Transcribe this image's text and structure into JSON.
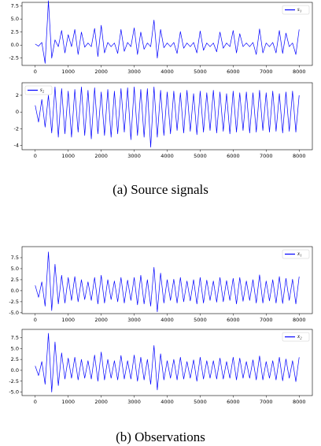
{
  "captions": [
    "(a) Source signals",
    "(b) Observations"
  ],
  "chart_data": [
    {
      "type": "line",
      "legend": "upper right",
      "x": [
        0,
        100,
        200,
        300,
        400,
        500,
        600,
        700,
        800,
        900,
        1000,
        1100,
        1200,
        1300,
        1400,
        1500,
        1600,
        1700,
        1800,
        1900,
        2000,
        2100,
        2200,
        2300,
        2400,
        2500,
        2600,
        2700,
        2800,
        2900,
        3000,
        3100,
        3200,
        3300,
        3400,
        3500,
        3600,
        3700,
        3800,
        3900,
        4000,
        4100,
        4200,
        4300,
        4400,
        4500,
        4600,
        4700,
        4800,
        4900,
        5000,
        5100,
        5200,
        5300,
        5400,
        5500,
        5600,
        5700,
        5800,
        5900,
        6000,
        6100,
        6200,
        6300,
        6400,
        6500,
        6600,
        6700,
        6800,
        6900,
        7000,
        7100,
        7200,
        7300,
        7400,
        7500,
        7600,
        7700,
        7800,
        7900,
        8000
      ],
      "series": [
        {
          "name": "s₁",
          "color": "#0000ff",
          "values": [
            0.2,
            -0.2,
            0.5,
            -3.5,
            8.5,
            -2.5,
            1.0,
            -0.3,
            2.8,
            -1.5,
            2.0,
            -0.3,
            3.0,
            -1.8,
            2.5,
            -0.4,
            0.4,
            -0.3,
            3.2,
            -2.2,
            3.8,
            -1.5,
            0.5,
            -0.3,
            0.4,
            -1.6,
            3.0,
            -1.2,
            0.5,
            -0.3,
            3.3,
            -1.8,
            2.5,
            -0.8,
            0.4,
            -0.3,
            4.8,
            -2.5,
            3.0,
            -0.5,
            0.4,
            -0.3,
            0.5,
            -1.6,
            2.6,
            -0.6,
            0.4,
            -0.3,
            0.5,
            -1.5,
            2.7,
            -1.0,
            0.4,
            -0.3,
            0.4,
            -1.3,
            2.5,
            -0.6,
            0.4,
            -0.3,
            2.8,
            -1.5,
            2.2,
            -0.3,
            0.4,
            -0.3,
            0.5,
            -1.8,
            3.1,
            -1.5,
            0.4,
            -0.3,
            0.5,
            -1.5,
            2.8,
            -1.6,
            2.3,
            -0.3,
            0.4,
            -1.8,
            3.0
          ]
        }
      ],
      "xlim": [
        -400,
        8400
      ],
      "xticks": [
        0,
        1000,
        2000,
        3000,
        4000,
        5000,
        6000,
        7000,
        8000
      ],
      "ylim": [
        -3.9,
        8.2
      ],
      "yticks": [
        7.5,
        {
          "value": 5,
          "label": "5.0"
        },
        2.5,
        {
          "value": 0,
          "label": "0.0"
        },
        -2.5
      ]
    },
    {
      "type": "line",
      "legend": "upper left",
      "x": [
        0,
        100,
        200,
        300,
        400,
        500,
        600,
        700,
        800,
        900,
        1000,
        1100,
        1200,
        1300,
        1400,
        1500,
        1600,
        1700,
        1800,
        1900,
        2000,
        2100,
        2200,
        2300,
        2400,
        2500,
        2600,
        2700,
        2800,
        2900,
        3000,
        3100,
        3200,
        3300,
        3400,
        3500,
        3600,
        3700,
        3800,
        3900,
        4000,
        4100,
        4200,
        4300,
        4400,
        4500,
        4600,
        4700,
        4800,
        4900,
        5000,
        5100,
        5200,
        5300,
        5400,
        5500,
        5600,
        5700,
        5800,
        5900,
        6000,
        6100,
        6200,
        6300,
        6400,
        6500,
        6600,
        6700,
        6800,
        6900,
        7000,
        7100,
        7200,
        7300,
        7400,
        7500,
        7600,
        7700,
        7800,
        7900,
        8000
      ],
      "series": [
        {
          "name": "s₂",
          "color": "#0000ff",
          "values": [
            0.8,
            -1.2,
            1.5,
            -1.8,
            2.0,
            -2.5,
            3.0,
            -3.0,
            2.8,
            -2.6,
            2.5,
            -3.0,
            2.7,
            -2.4,
            3.0,
            -2.8,
            2.6,
            -3.2,
            2.9,
            -2.6,
            2.4,
            -2.8,
            2.7,
            -3.0,
            2.5,
            -2.6,
            2.8,
            -2.4,
            2.9,
            -3.3,
            3.0,
            -2.8,
            2.7,
            -3.0,
            2.8,
            -4.2,
            3.0,
            -3.0,
            2.6,
            -2.8,
            2.4,
            -2.6,
            2.5,
            -2.2,
            2.3,
            -2.5,
            2.6,
            -2.3,
            2.2,
            -2.7,
            2.5,
            -2.4,
            2.3,
            -2.2,
            2.6,
            -2.5,
            2.4,
            -2.3,
            2.2,
            -2.6,
            2.5,
            -2.4,
            2.3,
            -2.2,
            2.4,
            -2.5,
            2.3,
            -2.4,
            2.6,
            -2.2,
            2.3,
            -2.4,
            2.5,
            -2.3,
            2.2,
            -2.5,
            2.4,
            -2.3,
            2.5,
            -2.4,
            2.0
          ]
        }
      ],
      "xlim": [
        -400,
        8400
      ],
      "xticks": [
        0,
        1000,
        2000,
        3000,
        4000,
        5000,
        6000,
        7000,
        8000
      ],
      "ylim": [
        -4.5,
        3.5
      ],
      "yticks": [
        2,
        0,
        -2,
        -4
      ]
    },
    {
      "type": "line",
      "legend": "upper right",
      "x": [
        0,
        100,
        200,
        300,
        400,
        500,
        600,
        700,
        800,
        900,
        1000,
        1100,
        1200,
        1300,
        1400,
        1500,
        1600,
        1700,
        1800,
        1900,
        2000,
        2100,
        2200,
        2300,
        2400,
        2500,
        2600,
        2700,
        2800,
        2900,
        3000,
        3100,
        3200,
        3300,
        3400,
        3500,
        3600,
        3700,
        3800,
        3900,
        4000,
        4100,
        4200,
        4300,
        4400,
        4500,
        4600,
        4700,
        4800,
        4900,
        5000,
        5100,
        5200,
        5300,
        5400,
        5500,
        5600,
        5700,
        5800,
        5900,
        6000,
        6100,
        6200,
        6300,
        6400,
        6500,
        6600,
        6700,
        6800,
        6900,
        7000,
        7100,
        7200,
        7300,
        7400,
        7500,
        7600,
        7700,
        7800,
        7900,
        8000
      ],
      "series": [
        {
          "name": "x₁",
          "color": "#0000ff",
          "values": [
            1.2,
            -1.5,
            2.0,
            -3.5,
            8.8,
            -4.5,
            6.0,
            -3.0,
            3.5,
            -2.8,
            3.0,
            -2.2,
            3.2,
            -2.5,
            2.5,
            -2.0,
            2.0,
            -2.2,
            3.0,
            -3.0,
            3.5,
            -2.8,
            2.5,
            -2.0,
            2.2,
            -2.5,
            3.0,
            -2.8,
            2.4,
            -2.2,
            3.0,
            -3.2,
            3.5,
            -3.0,
            2.5,
            -3.5,
            5.3,
            -4.8,
            4.0,
            -2.8,
            2.5,
            -2.2,
            2.6,
            -2.8,
            3.0,
            -2.5,
            2.2,
            -2.3,
            2.5,
            -3.0,
            3.0,
            -2.8,
            2.4,
            -2.2,
            2.2,
            -2.6,
            3.0,
            -2.5,
            2.3,
            -2.2,
            2.8,
            -3.0,
            3.0,
            -2.4,
            2.2,
            -2.2,
            2.5,
            -2.8,
            3.6,
            -2.8,
            2.2,
            -2.3,
            2.5,
            -2.8,
            3.2,
            -2.9,
            2.8,
            -2.2,
            2.6,
            -3.0,
            3.2
          ]
        }
      ],
      "xlim": [
        -400,
        8400
      ],
      "xticks": [
        0,
        1000,
        2000,
        3000,
        4000,
        5000,
        6000,
        7000,
        8000
      ],
      "ylim": [
        -5.2,
        10.0
      ],
      "yticks": [
        7.5,
        {
          "value": 5,
          "label": "5.0"
        },
        2.5,
        {
          "value": 0,
          "label": "0.0"
        },
        -2.5,
        {
          "value": -5,
          "label": "-5.0"
        }
      ]
    },
    {
      "type": "line",
      "legend": "upper right",
      "x": [
        0,
        100,
        200,
        300,
        400,
        500,
        600,
        700,
        800,
        900,
        1000,
        1100,
        1200,
        1300,
        1400,
        1500,
        1600,
        1700,
        1800,
        1900,
        2000,
        2100,
        2200,
        2300,
        2400,
        2500,
        2600,
        2700,
        2800,
        2900,
        3000,
        3100,
        3200,
        3300,
        3400,
        3500,
        3600,
        3700,
        3800,
        3900,
        4000,
        4100,
        4200,
        4300,
        4400,
        4500,
        4600,
        4700,
        4800,
        4900,
        5000,
        5100,
        5200,
        5300,
        5400,
        5500,
        5600,
        5700,
        5800,
        5900,
        6000,
        6100,
        6200,
        6300,
        6400,
        6500,
        6600,
        6700,
        6800,
        6900,
        7000,
        7100,
        7200,
        7300,
        7400,
        7500,
        7600,
        7700,
        7800,
        7900,
        8000
      ],
      "series": [
        {
          "name": "x₂",
          "color": "#0000ff",
          "values": [
            1.0,
            -1.2,
            2.0,
            -3.2,
            8.5,
            -5.0,
            6.5,
            -3.5,
            4.0,
            -2.0,
            2.8,
            -1.8,
            3.0,
            -2.2,
            2.5,
            -1.8,
            2.2,
            -2.0,
            3.5,
            -2.5,
            4.2,
            -2.2,
            2.5,
            -1.8,
            2.2,
            -2.2,
            3.4,
            -2.0,
            2.2,
            -2.0,
            3.5,
            -2.5,
            3.0,
            -2.2,
            2.5,
            -3.2,
            5.7,
            -4.5,
            3.8,
            -2.2,
            2.2,
            -1.8,
            2.5,
            -2.2,
            3.0,
            -2.0,
            2.0,
            -1.8,
            2.4,
            -2.5,
            3.0,
            -2.0,
            2.2,
            -1.8,
            2.2,
            -2.0,
            2.8,
            -2.0,
            2.0,
            -1.8,
            3.0,
            -2.2,
            2.8,
            -1.8,
            2.0,
            -1.8,
            2.4,
            -2.2,
            3.3,
            -2.2,
            2.0,
            -1.8,
            2.2,
            -2.2,
            3.0,
            -2.4,
            2.6,
            -1.8,
            2.2,
            -2.6,
            3.0
          ]
        }
      ],
      "xlim": [
        -400,
        8400
      ],
      "xticks": [
        0,
        1000,
        2000,
        3000,
        4000,
        5000,
        6000,
        7000,
        8000
      ],
      "ylim": [
        -5.8,
        9.4
      ],
      "yticks": [
        7.5,
        {
          "value": 5,
          "label": "5.0"
        },
        2.5,
        {
          "value": 0,
          "label": "0.0"
        },
        -2.5,
        {
          "value": -5,
          "label": "-5.0"
        }
      ]
    }
  ]
}
